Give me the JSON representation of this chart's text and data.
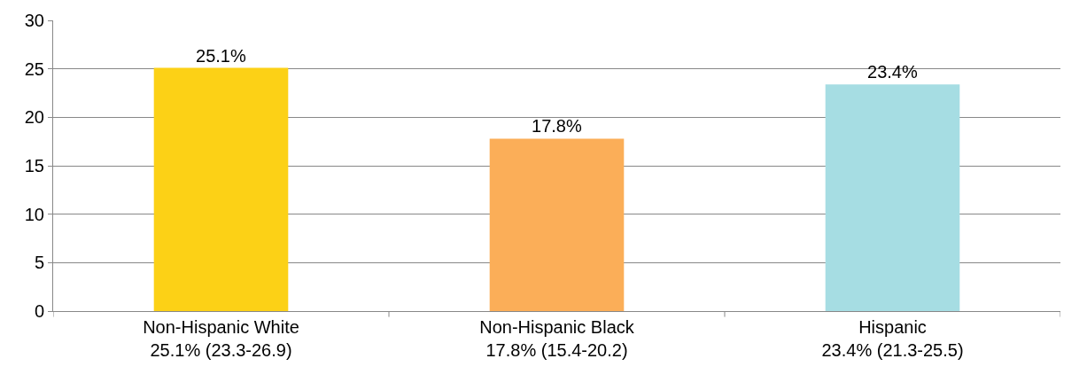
{
  "chart_data": {
    "type": "bar",
    "categories": [
      "Non-Hispanic White\n25.1% (23.3-26.9)",
      "Non-Hispanic Black\n17.8% (15.4-20.2)",
      "Hispanic\n23.4% (21.3-25.5)"
    ],
    "values": [
      25.1,
      17.8,
      23.4
    ],
    "colors": [
      "#fcd116",
      "#fbae58",
      "#a6dde3"
    ],
    "value_labels": [
      "25.1%",
      "17.8%",
      "23.4%"
    ],
    "ylim": [
      0,
      30
    ],
    "yticks": [
      0,
      5,
      10,
      15,
      20,
      25,
      30
    ],
    "grid": "y"
  }
}
